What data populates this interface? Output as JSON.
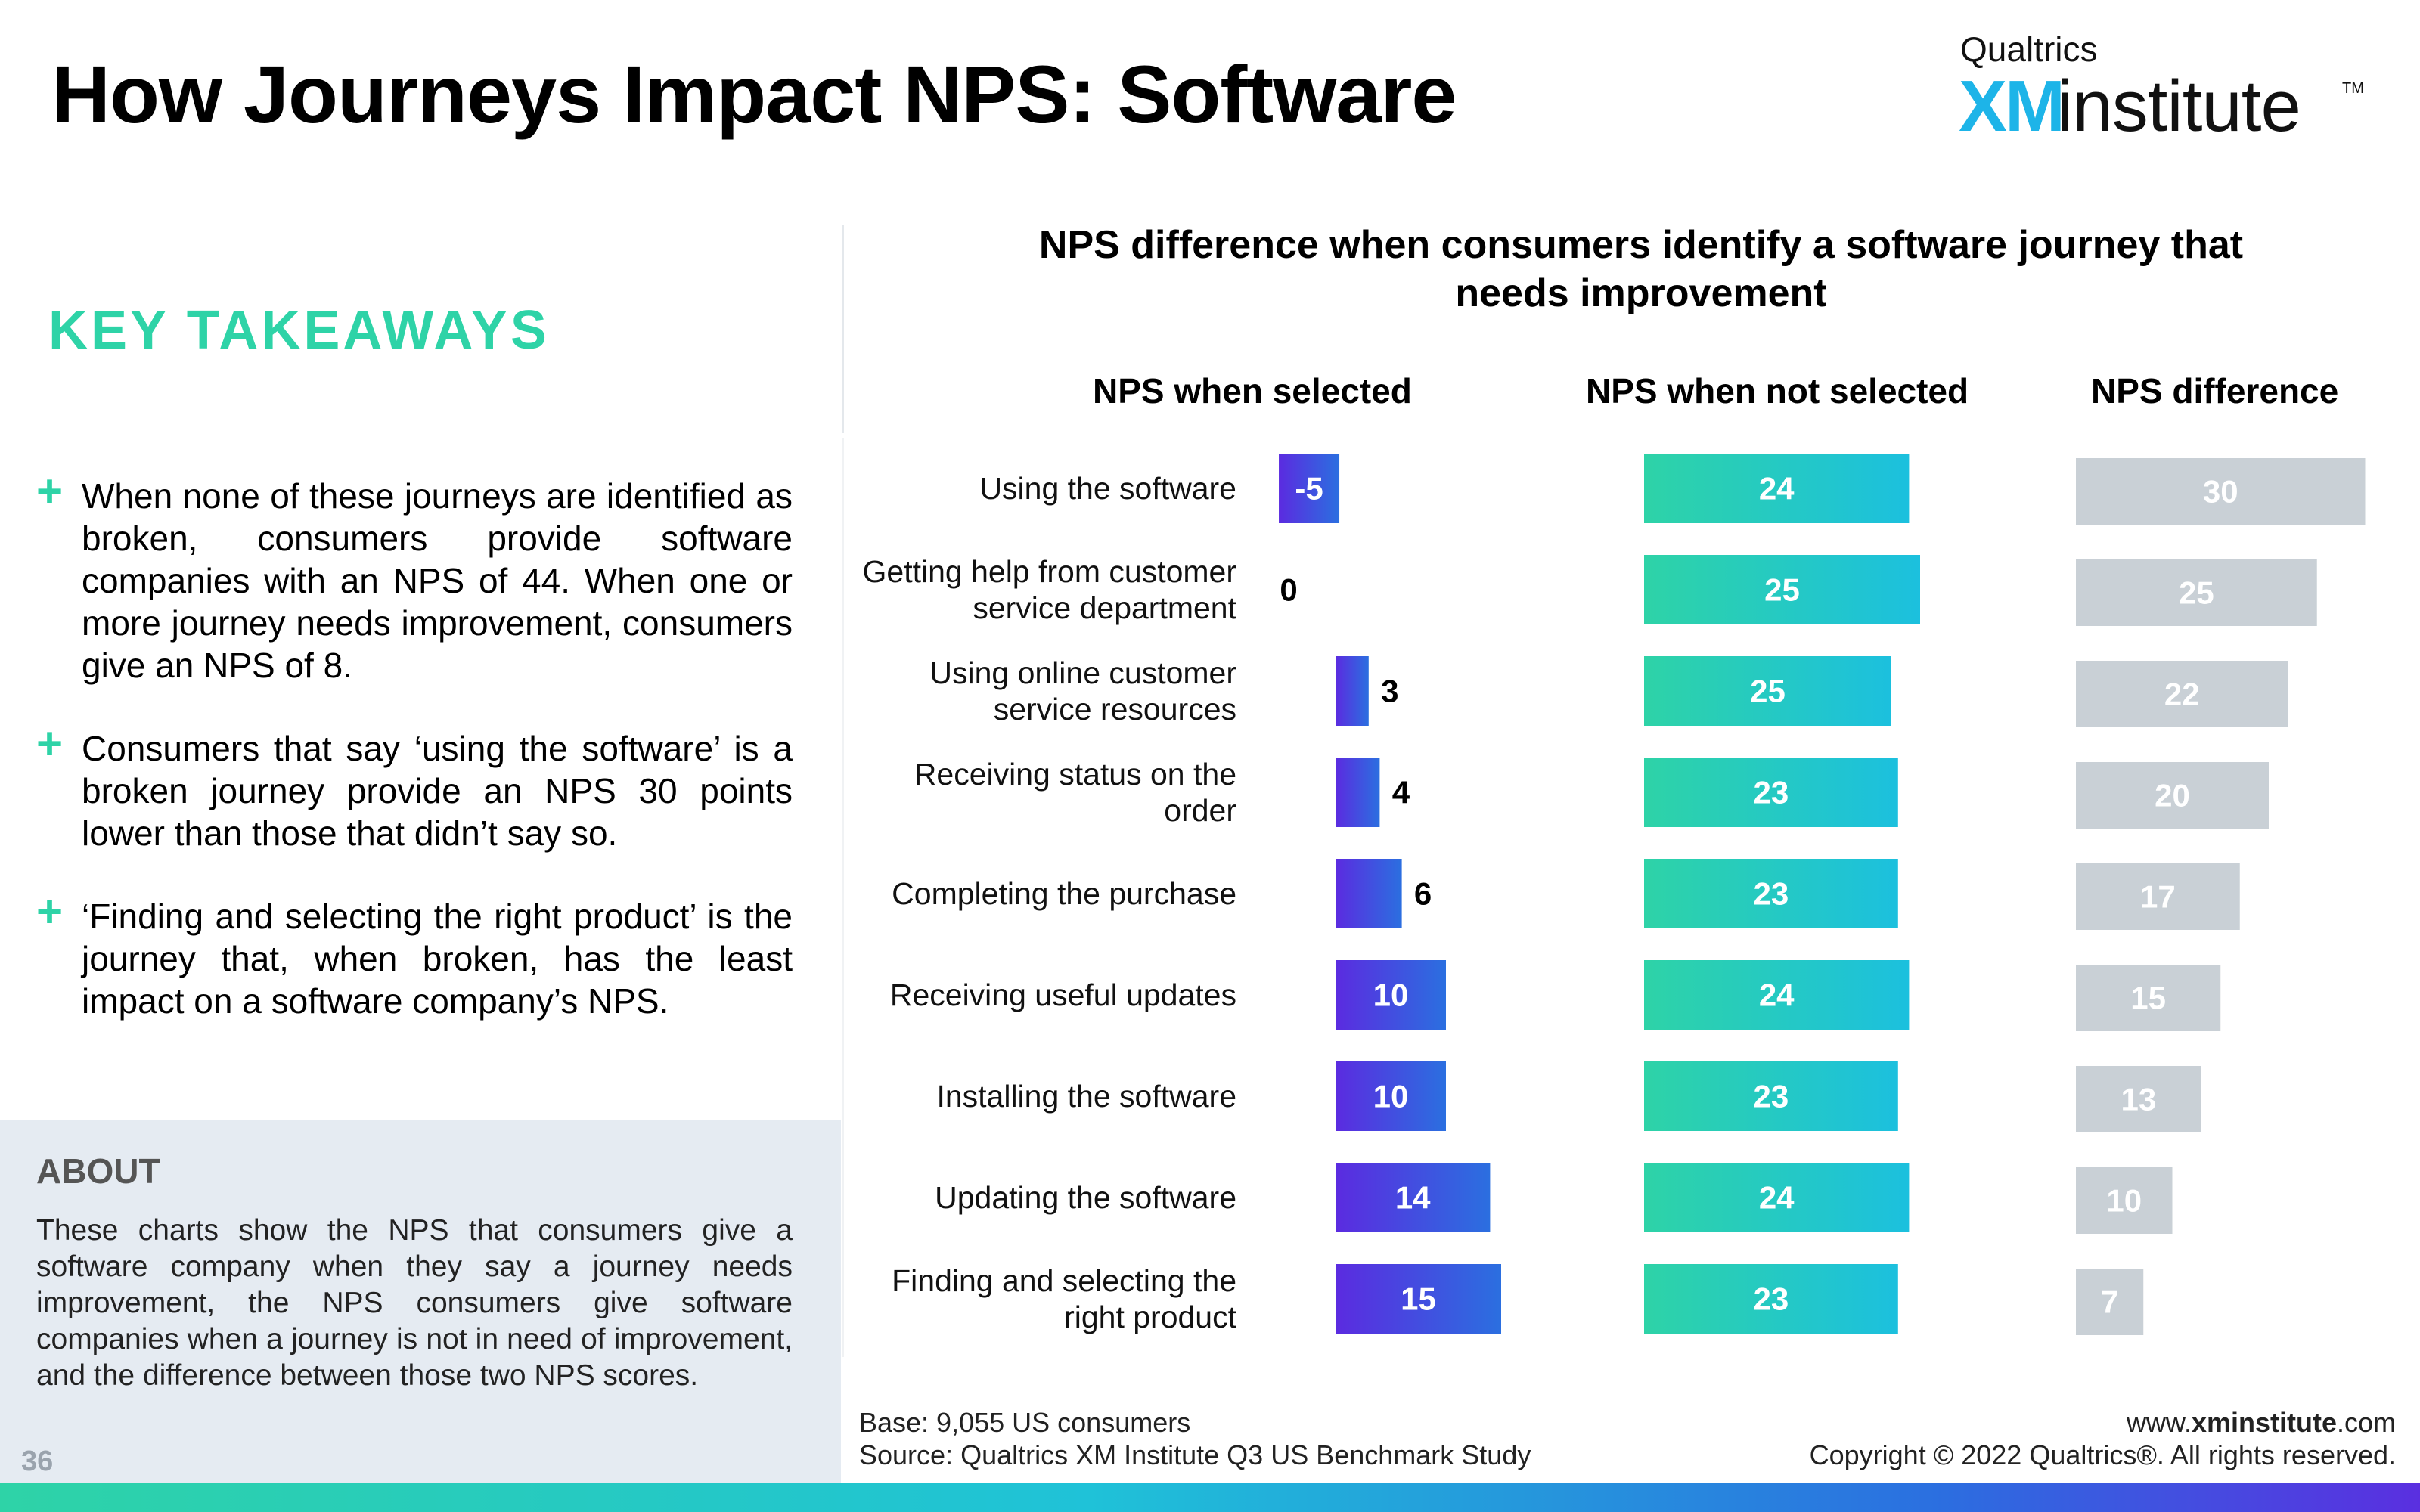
{
  "page": {
    "title": "How Journeys Impact NPS: Software",
    "logo": {
      "top": "Qualtrics",
      "xm": "XM",
      "institute": "institute",
      "tm": "TM"
    },
    "page_number": "36"
  },
  "takeaways": {
    "heading": "KEY TAKEAWAYS",
    "items": [
      "When none of these journeys are identified as broken, consumers provide software companies with an NPS of 44. When one or more journey needs improvement, consumers give an NPS of 8.",
      "Consumers that say ‘using the software’ is a broken journey provide an NPS 30 points lower than those that didn’t say so.",
      "‘Finding and selecting the right product’ is the journey that, when broken, has the least impact on a software company’s NPS."
    ]
  },
  "about": {
    "heading": "ABOUT",
    "text": "These charts show the NPS that consumers give a software company when they say a journey needs improvement, the NPS consumers give software companies when a journey is not in need of improvement, and the difference between those two NPS scores."
  },
  "footer": {
    "base": "Base: 9,055 US consumers",
    "source": "Source: Qualtrics XM Institute Q3 US Benchmark Study",
    "site_pre": "www.",
    "site_bold": "xminstitute",
    "site_post": ".com",
    "copyright": "Copyright © 2022 Qualtrics®. All rights reserved."
  },
  "colors": {
    "selected_start": "#5b2be0",
    "selected_end": "#2b6fe0",
    "not_selected_start": "#2ed3a7",
    "not_selected_end": "#1cc0de",
    "difference": "#c9d0d6",
    "accent": "#2ed3a7"
  },
  "chart_data": {
    "type": "bar",
    "title": "NPS difference when consumers identify a software journey that needs improvement",
    "categories": [
      "Using the software",
      "Getting help from customer service department",
      "Using online customer service resources",
      "Receiving status on the order",
      "Completing the purchase",
      "Receiving useful updates",
      "Installing the software",
      "Updating the software",
      "Finding and selecting the right product"
    ],
    "series": [
      {
        "name": "NPS when selected",
        "values": [
          -5,
          0,
          3,
          4,
          6,
          10,
          10,
          14,
          15
        ]
      },
      {
        "name": "NPS when not selected",
        "values": [
          24,
          25,
          25,
          23,
          23,
          24,
          23,
          24,
          23
        ]
      },
      {
        "name": "NPS difference",
        "values": [
          30,
          25,
          22,
          20,
          17,
          15,
          13,
          10,
          7
        ]
      }
    ]
  }
}
